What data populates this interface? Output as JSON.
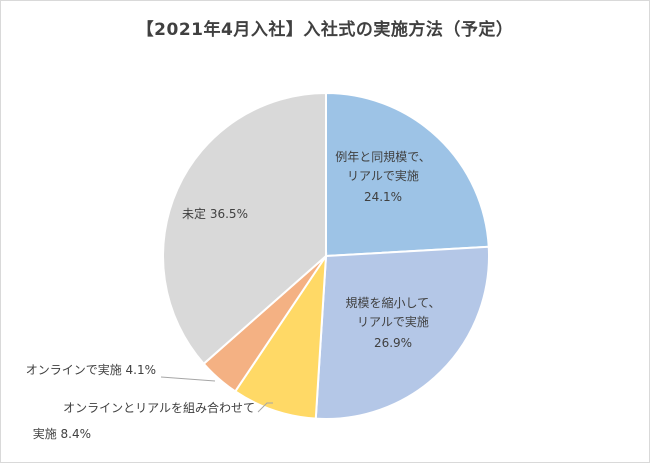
{
  "chart_data": {
    "type": "pie",
    "title": "【2021年4月入社】入社式の実施方法（予定）",
    "slices": [
      {
        "label_lines": [
          "例年と同規模で、",
          "リアルで実施"
        ],
        "value": 24.1,
        "value_text": "24.1%",
        "color": "#9dc3e6"
      },
      {
        "label_lines": [
          "規模を縮小して、",
          "リアルで実施"
        ],
        "value": 26.9,
        "value_text": "26.9%",
        "color": "#b4c7e7"
      },
      {
        "label_lines": [
          "オンラインとリアルを組み合わせて",
          "実施"
        ],
        "value": 8.4,
        "value_text": "8.4%",
        "color": "#ffd966"
      },
      {
        "label_lines": [
          "オンラインで実施"
        ],
        "value": 4.1,
        "value_text": "4.1%",
        "color": "#f4b183"
      },
      {
        "label_lines": [
          "未定"
        ],
        "value": 36.5,
        "value_text": "36.5%",
        "color": "#d9d9d9"
      }
    ]
  }
}
